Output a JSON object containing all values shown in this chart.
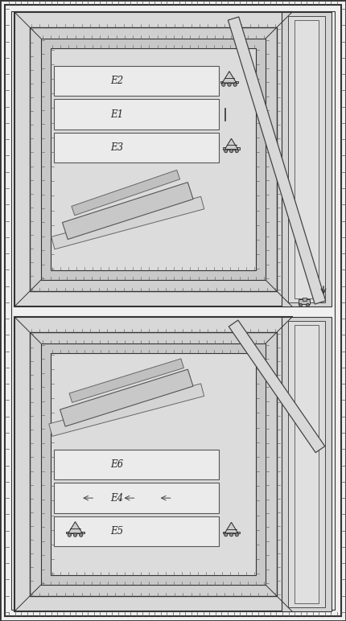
{
  "bg_color": "#c8c8c8",
  "paper_color": "#f0f0f0",
  "section_fill": "#e8e8e8",
  "inner_fill": "#e2e2e2",
  "floor_fill": "#dcdcdc",
  "lane_fill": "#eeeeee",
  "beam_fill": "#d0d0d0",
  "line_color": "#333333",
  "tick_color": "#555555",
  "text_color": "#222222",
  "top_section": {
    "label": "top",
    "lanes": [
      "E2",
      "E1",
      "E3"
    ]
  },
  "bottom_section": {
    "label": "bottom",
    "lanes": [
      "E6",
      "E4",
      "E5"
    ]
  }
}
